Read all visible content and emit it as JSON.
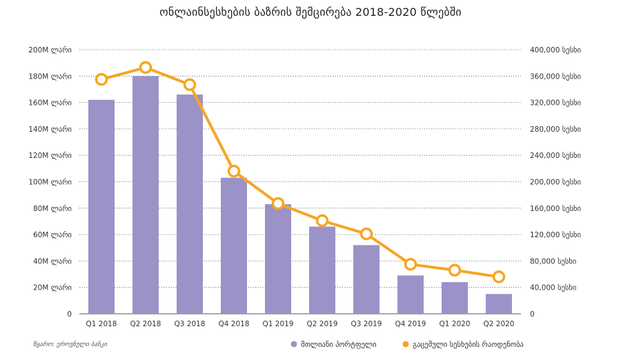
{
  "chart_data": {
    "type": "bar",
    "title": "ონლაინსესხების ბაზრის შემცირება 2018-2020 წლებში",
    "categories": [
      "Q1 2018",
      "Q2 2018",
      "Q3 2018",
      "Q4 2018",
      "Q1 2019",
      "Q2 2019",
      "Q3 2019",
      "Q4 2019",
      "Q1 2020",
      "Q2 2020"
    ],
    "series": [
      {
        "name": "მთლიანი პორტფელი",
        "type": "bar",
        "axis": "left",
        "color": "#9b93c7",
        "values": [
          162,
          180,
          166,
          103,
          83,
          66,
          52,
          29,
          24,
          15
        ]
      },
      {
        "name": "გაცემული სესხების რაოდენობა",
        "type": "line",
        "axis": "right",
        "color": "#f5a623",
        "values": [
          355000,
          373000,
          347000,
          216000,
          167000,
          141000,
          121000,
          75000,
          66000,
          56000
        ]
      }
    ],
    "y_left": {
      "ylim": [
        0,
        200
      ],
      "ticks": [
        0,
        20,
        40,
        60,
        80,
        100,
        120,
        140,
        160,
        180,
        200
      ],
      "tick_labels": [
        "0",
        "20M ლარი",
        "40M ლარი",
        "60M ლარი",
        "80M ლარი",
        "100M ლარი",
        "120M ლარი",
        "140M ლარი",
        "160M ლარი",
        "180M ლარი",
        "200M ლარი"
      ]
    },
    "y_right": {
      "ylim": [
        0,
        400000
      ],
      "ticks": [
        0,
        40000,
        80000,
        120000,
        160000,
        200000,
        240000,
        280000,
        320000,
        360000,
        400000
      ],
      "tick_labels": [
        "0",
        "40,000 სესხი",
        "80,000 სესხი",
        "120,000 სესხი",
        "160,000 სესხი",
        "200,000 სესხი",
        "240,000 სესხი",
        "280,000 სესხი",
        "320,000 სესხი",
        "360,000 სესხი",
        "400,000 სესხი"
      ]
    },
    "grid": true,
    "grid_style": "dotted",
    "legend_position": "bottom-right",
    "source": "წყარო: ეროვნული ბანკი"
  }
}
